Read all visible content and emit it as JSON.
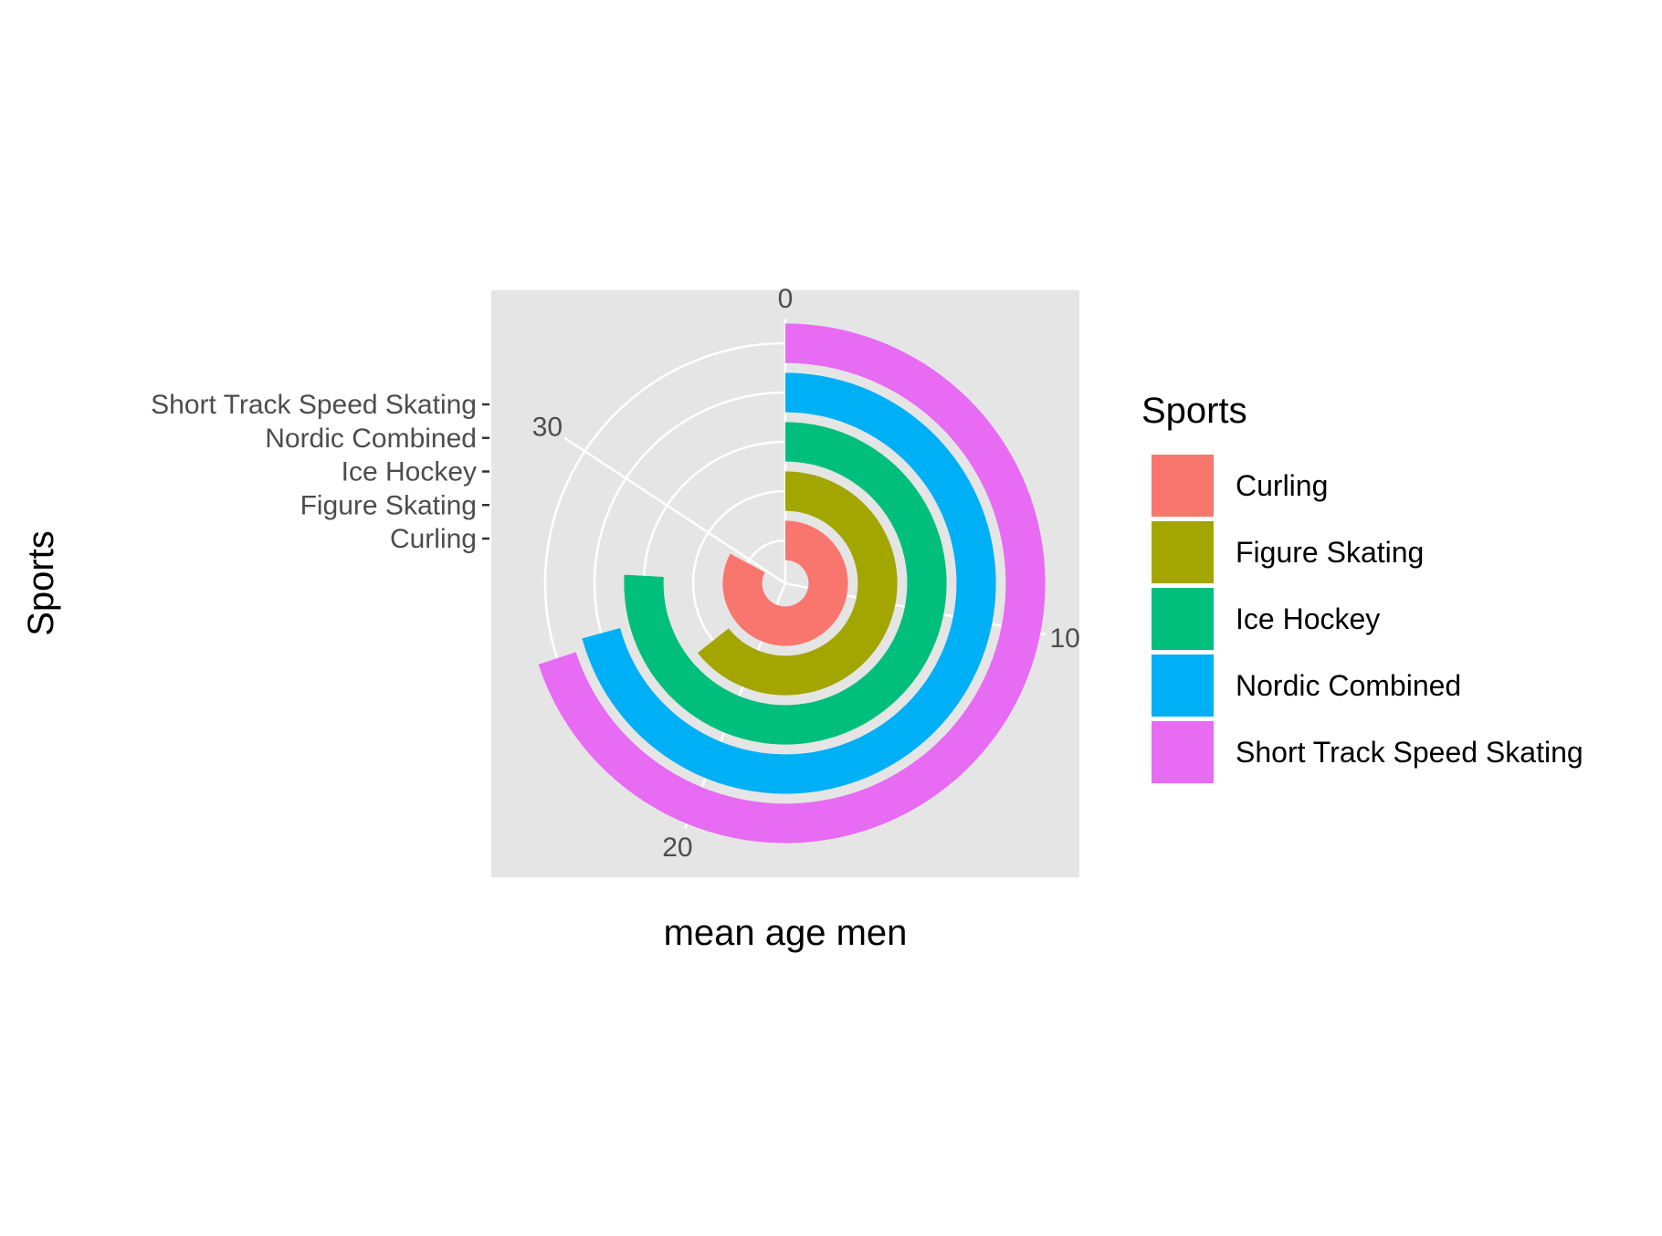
{
  "chart_data": {
    "type": "bar",
    "coord": "polar",
    "title": "",
    "xlabel": "mean age men",
    "ylabel": "Sports",
    "theta_scale": {
      "min": 0,
      "max": 35.6,
      "breaks": [
        0,
        10,
        20,
        30
      ]
    },
    "categories": [
      "Curling",
      "Figure Skating",
      "Ice Hockey",
      "Nordic Combined",
      "Short Track Speed Skating"
    ],
    "values": [
      29.5,
      22.9,
      27.0,
      25.2,
      24.9
    ],
    "colors": [
      "#F8766D",
      "#A3A500",
      "#00BF7D",
      "#00B0F6",
      "#E76BF3"
    ],
    "legend": {
      "title": "Sports",
      "position": "right"
    },
    "panel_background": "#E5E5E5",
    "grid": true
  }
}
